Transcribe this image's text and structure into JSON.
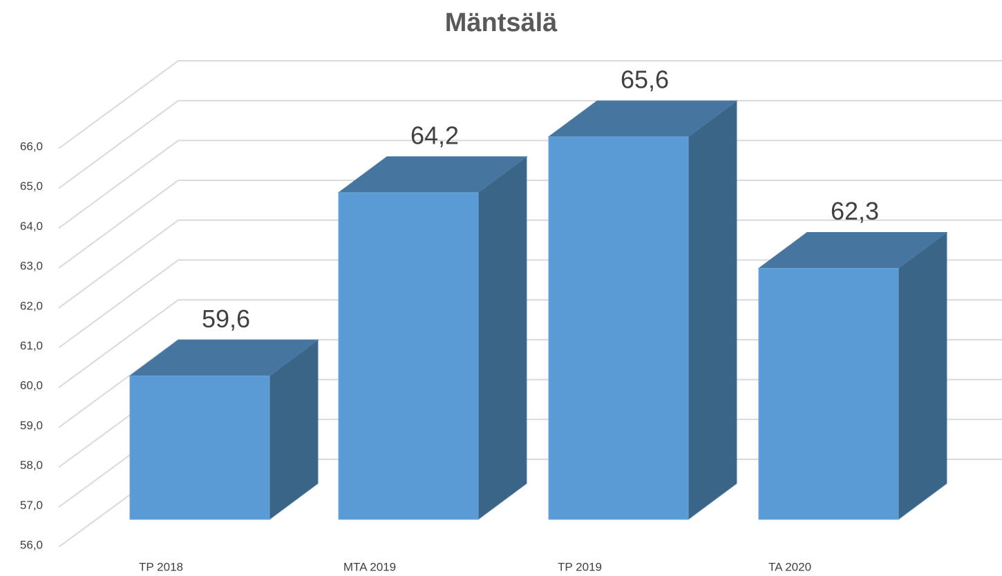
{
  "chart_data": {
    "type": "bar3d",
    "title": "Mäntsälä",
    "categories": [
      "TP 2018",
      "MTA 2019",
      "TP 2019",
      "TA 2020"
    ],
    "values": [
      59.6,
      64.2,
      65.6,
      62.3
    ],
    "value_labels": [
      "59,6",
      "64,2",
      "65,6",
      "62,3"
    ],
    "color": "#5b9bd5",
    "ylim": [
      56,
      66
    ],
    "yticks": [
      {
        "value": 56,
        "label": "56,0"
      },
      {
        "value": 57,
        "label": "57,0"
      },
      {
        "value": 58,
        "label": "58,0"
      },
      {
        "value": 59,
        "label": "59,0"
      },
      {
        "value": 60,
        "label": "60,0"
      },
      {
        "value": 61,
        "label": "61,0"
      },
      {
        "value": 62,
        "label": "62,0"
      },
      {
        "value": 63,
        "label": "63,0"
      },
      {
        "value": 64,
        "label": "64,0"
      },
      {
        "value": 65,
        "label": "65,0"
      },
      {
        "value": 66,
        "label": "66,0"
      }
    ],
    "grid": true
  }
}
